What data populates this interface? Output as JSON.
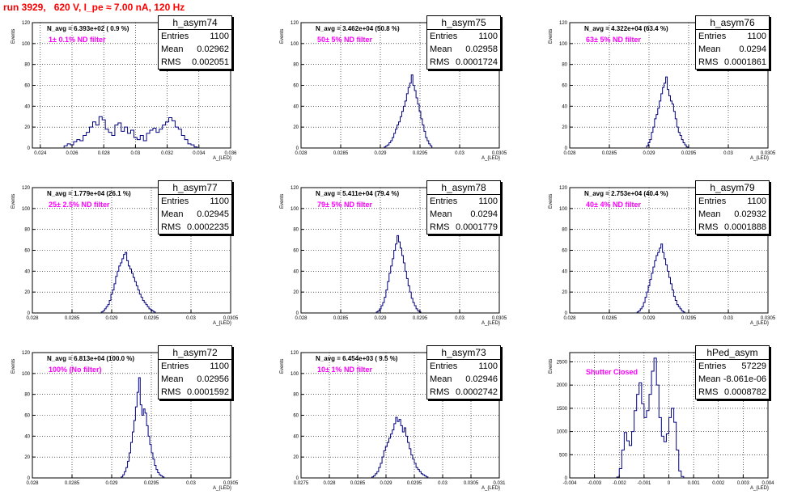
{
  "header": {
    "title": "run 3929,   620 V, I_pe ≈ 7.00 nA, 120 Hz"
  },
  "colors": {
    "hist": "#000080",
    "title": "#ff0000",
    "filter": "#ff00ff",
    "grid": "#000000"
  },
  "chart_data": [
    {
      "type": "bar",
      "name": "h_asym74",
      "stats": {
        "entries": "1100",
        "mean": "0.02962",
        "rms": "0.002051"
      },
      "navg": "N_avg = 6.393e+02 ( 0.9 %)",
      "filter_label": "1± 0.1% ND filter",
      "xlim": [
        0.0235,
        0.036
      ],
      "ylim": [
        0,
        120
      ],
      "xticks": [
        "0.024",
        "0.026",
        "0.028",
        "0.03",
        "0.032",
        "0.034",
        "0.036"
      ],
      "xtick_values": [
        0.024,
        0.026,
        0.028,
        0.03,
        0.032,
        0.034,
        0.036
      ],
      "yticks": [
        0,
        20,
        40,
        60,
        80,
        100,
        120
      ],
      "xlabel": "A_{LED}",
      "ylabel": "Events",
      "bins": {
        "start": 0.0255,
        "width": 0.0002,
        "values": [
          2,
          4,
          3,
          6,
          8,
          7,
          12,
          15,
          20,
          25,
          22,
          30,
          27,
          18,
          15,
          12,
          22,
          24,
          16,
          20,
          14,
          17,
          10,
          8,
          12,
          7,
          14,
          17,
          19,
          15,
          18,
          22,
          25,
          29,
          26,
          20,
          18,
          12,
          8,
          4,
          3,
          1
        ]
      }
    },
    {
      "type": "bar",
      "name": "h_asym75",
      "stats": {
        "entries": "1100",
        "mean": "0.02958",
        "rms": "0.0001724"
      },
      "navg": "N_avg = 3.462e+04 (50.8 %)",
      "filter_label": "50± 5% ND filter",
      "xlim": [
        0.028,
        0.0305
      ],
      "ylim": [
        0,
        120
      ],
      "xticks": [
        "0.028",
        "0.0285",
        "0.029",
        "0.0295",
        "0.03",
        "0.0305"
      ],
      "xtick_values": [
        0.028,
        0.0285,
        0.029,
        0.0295,
        0.03,
        0.0305
      ],
      "yticks": [
        0,
        20,
        40,
        60,
        80,
        100,
        120
      ],
      "xlabel": "A_{LED}",
      "ylabel": "Events",
      "bins": {
        "start": 0.02905,
        "width": 2e-05,
        "values": [
          1,
          2,
          3,
          5,
          7,
          10,
          14,
          18,
          22,
          25,
          30,
          35,
          40,
          45,
          52,
          58,
          62,
          70,
          60,
          55,
          48,
          42,
          35,
          28,
          22,
          16,
          10,
          7,
          4,
          2
        ]
      }
    },
    {
      "type": "bar",
      "name": "h_asym76",
      "stats": {
        "entries": "1100",
        "mean": "0.0294",
        "rms": "0.0001861"
      },
      "navg": "N_avg = 4.322e+04 (63.4 %)",
      "filter_label": "63± 5% ND filter",
      "xlim": [
        0.028,
        0.0305
      ],
      "ylim": [
        0,
        120
      ],
      "xticks": [
        "0.028",
        "0.0285",
        "0.029",
        "0.0295",
        "0.03",
        "0.0305"
      ],
      "xtick_values": [
        0.028,
        0.0285,
        0.029,
        0.0295,
        0.03,
        0.0305
      ],
      "yticks": [
        0,
        20,
        40,
        60,
        80,
        100,
        120
      ],
      "xlabel": "A_{LED}",
      "ylabel": "Events",
      "bins": {
        "start": 0.02897,
        "width": 2e-05,
        "values": [
          2,
          5,
          8,
          15,
          20,
          28,
          32,
          38,
          45,
          52,
          58,
          62,
          68,
          56,
          50,
          45,
          42,
          35,
          28,
          20,
          15,
          12,
          8,
          5,
          3,
          1
        ]
      }
    },
    {
      "type": "bar",
      "name": "h_asym77",
      "stats": {
        "entries": "1100",
        "mean": "0.02945",
        "rms": "0.0002235"
      },
      "navg": "N_avg = 1.779e+04 (26.1 %)",
      "filter_label": "25± 2.5% ND filter",
      "xlim": [
        0.028,
        0.0305
      ],
      "ylim": [
        0,
        120
      ],
      "xticks": [
        "0.028",
        "0.0285",
        "0.029",
        "0.0295",
        "0.03",
        "0.0305"
      ],
      "xtick_values": [
        0.028,
        0.0285,
        0.029,
        0.0295,
        0.03,
        0.0305
      ],
      "yticks": [
        0,
        20,
        40,
        60,
        80,
        100,
        120
      ],
      "xlabel": "A_{LED}",
      "ylabel": "Events",
      "bins": {
        "start": 0.02887,
        "width": 2e-05,
        "values": [
          1,
          2,
          4,
          6,
          8,
          12,
          18,
          22,
          28,
          35,
          40,
          45,
          48,
          52,
          56,
          58,
          50,
          45,
          42,
          38,
          34,
          30,
          26,
          22,
          18,
          15,
          12,
          10,
          8,
          6,
          4,
          3,
          2,
          1
        ]
      }
    },
    {
      "type": "bar",
      "name": "h_asym78",
      "stats": {
        "entries": "1100",
        "mean": "0.0294",
        "rms": "0.0001779"
      },
      "navg": "N_avg = 5.411e+04 (79.4 %)",
      "filter_label": "79± 5% ND filter",
      "xlim": [
        0.028,
        0.0305
      ],
      "ylim": [
        0,
        120
      ],
      "xticks": [
        "0.028",
        "0.0285",
        "0.029",
        "0.0295",
        "0.03",
        "0.0305"
      ],
      "xtick_values": [
        0.028,
        0.0285,
        0.029,
        0.0295,
        0.03,
        0.0305
      ],
      "yticks": [
        0,
        20,
        40,
        60,
        80,
        100,
        120
      ],
      "xlabel": "A_{LED}",
      "ylabel": "Events",
      "bins": {
        "start": 0.02895,
        "width": 2e-05,
        "values": [
          1,
          2,
          4,
          7,
          10,
          15,
          22,
          30,
          38,
          45,
          52,
          60,
          66,
          74,
          68,
          62,
          55,
          48,
          40,
          33,
          26,
          20,
          14,
          10,
          7,
          4,
          2,
          1
        ]
      }
    },
    {
      "type": "bar",
      "name": "h_asym79",
      "stats": {
        "entries": "1100",
        "mean": "0.02932",
        "rms": "0.0001888"
      },
      "navg": "N_avg = 2.753e+04 (40.4 %)",
      "filter_label": "40± 4% ND filter",
      "xlim": [
        0.028,
        0.0305
      ],
      "ylim": [
        0,
        120
      ],
      "xticks": [
        "0.028",
        "0.0285",
        "0.029",
        "0.0295",
        "0.03",
        "0.0305"
      ],
      "xtick_values": [
        0.028,
        0.0285,
        0.029,
        0.0295,
        0.03,
        0.0305
      ],
      "yticks": [
        0,
        20,
        40,
        60,
        80,
        100,
        120
      ],
      "xlabel": "A_{LED}",
      "ylabel": "Events",
      "bins": {
        "start": 0.02885,
        "width": 2e-05,
        "values": [
          1,
          2,
          4,
          6,
          10,
          15,
          20,
          26,
          32,
          38,
          44,
          50,
          55,
          58,
          62,
          66,
          58,
          52,
          46,
          40,
          34,
          28,
          22,
          16,
          12,
          8,
          6,
          4,
          2,
          1
        ]
      }
    },
    {
      "type": "bar",
      "name": "h_asym72",
      "stats": {
        "entries": "1100",
        "mean": "0.02956",
        "rms": "0.0001592"
      },
      "navg": "N_avg = 6.813e+04 (100.0 %)",
      "filter_label": "100% (No filter)",
      "xlim": [
        0.028,
        0.0305
      ],
      "ylim": [
        0,
        120
      ],
      "xticks": [
        "0.028",
        "0.0285",
        "0.029",
        "0.0295",
        "0.03",
        "0.0305"
      ],
      "xtick_values": [
        0.028,
        0.0285,
        0.029,
        0.0295,
        0.03,
        0.0305
      ],
      "yticks": [
        0,
        20,
        40,
        60,
        80,
        100,
        120
      ],
      "xlabel": "A_{LED}",
      "ylabel": "Events",
      "bins": {
        "start": 0.02912,
        "width": 2e-05,
        "values": [
          1,
          3,
          6,
          10,
          16,
          24,
          34,
          44,
          55,
          68,
          82,
          96,
          70,
          60,
          66,
          62,
          50,
          40,
          32,
          24,
          18,
          12,
          8,
          5,
          3,
          2,
          1
        ]
      }
    },
    {
      "type": "bar",
      "name": "h_asym73",
      "stats": {
        "entries": "1100",
        "mean": "0.02946",
        "rms": "0.0002742"
      },
      "navg": "N_avg = 6.454e+03 ( 9.5 %)",
      "filter_label": "10± 1% ND filter",
      "xlim": [
        0.0275,
        0.031
      ],
      "ylim": [
        0,
        120
      ],
      "xticks": [
        "0.0275",
        "0.028",
        "0.0285",
        "0.029",
        "0.0295",
        "0.03",
        "0.0305",
        "0.031"
      ],
      "xtick_values": [
        0.0275,
        0.028,
        0.0285,
        0.029,
        0.0295,
        0.03,
        0.0305,
        0.031
      ],
      "yticks": [
        0,
        20,
        40,
        60,
        80,
        100,
        120
      ],
      "xlabel": "A_{LED}",
      "ylabel": "Events",
      "bins": {
        "start": 0.02875,
        "width": 3e-05,
        "values": [
          1,
          2,
          4,
          6,
          10,
          14,
          20,
          26,
          30,
          34,
          38,
          42,
          46,
          52,
          58,
          54,
          56,
          50,
          44,
          48,
          40,
          34,
          28,
          22,
          18,
          14,
          10,
          8,
          6,
          4,
          3,
          2,
          1
        ]
      }
    },
    {
      "type": "bar",
      "name": "hPed_asym",
      "stats": {
        "entries": "57229",
        "mean": "-8.061e-06",
        "rms": "0.0008782"
      },
      "navg": "",
      "filter_label": "Shutter Closed",
      "xlim": [
        -0.004,
        0.004
      ],
      "ylim": [
        0,
        2700
      ],
      "xticks": [
        "-0.004",
        "-0.003",
        "-0.002",
        "-0.001",
        "0",
        "0.001",
        "0.002",
        "0.003",
        "0.004"
      ],
      "xtick_values": [
        -0.004,
        -0.003,
        -0.002,
        -0.001,
        0,
        0.001,
        0.002,
        0.003,
        0.004
      ],
      "yticks": [
        0,
        500,
        1000,
        1500,
        2000,
        2500
      ],
      "xlabel": "A_{LED}",
      "ylabel": "Events",
      "bins": {
        "start": -0.0021,
        "width": 0.0001,
        "values": [
          20,
          200,
          600,
          980,
          800,
          700,
          1000,
          1450,
          1800,
          2050,
          1600,
          1300,
          1450,
          1800,
          2300,
          2580,
          2000,
          1300,
          900,
          780,
          950,
          1300,
          1500,
          1200,
          600,
          150,
          30
        ]
      }
    }
  ]
}
